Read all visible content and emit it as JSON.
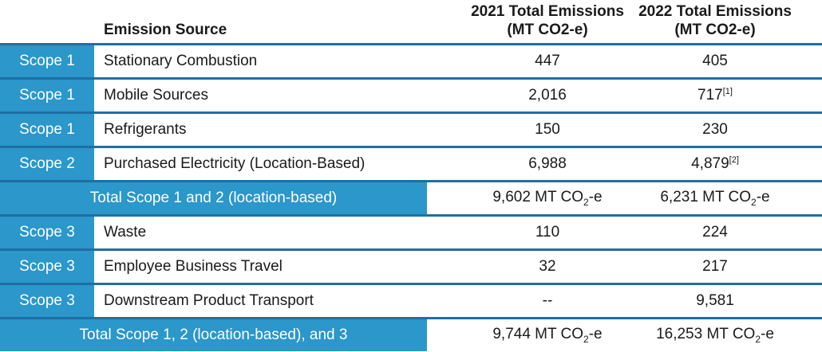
{
  "header": {
    "source": "Emission Source",
    "col2021": [
      "2021 Total Emissions",
      "(MT CO2-e)"
    ],
    "col2022": [
      "2022 Total Emissions",
      "(MT CO2-e)"
    ]
  },
  "rows": [
    {
      "scope": "Scope 1",
      "source": "Stationary Combustion",
      "v2021": "447",
      "v2022": "405"
    },
    {
      "scope": "Scope 1",
      "source": "Mobile Sources",
      "v2021": "2,016",
      "v2022": "717",
      "note2022": "[1]"
    },
    {
      "scope": "Scope 1",
      "source": "Refrigerants",
      "v2021": "150",
      "v2022": "230"
    },
    {
      "scope": "Scope 2",
      "source": "Purchased Electricity (Location-Based)",
      "v2021": "6,988",
      "v2022": "4,879",
      "note2022": "[2]"
    }
  ],
  "total12": {
    "label": "Total Scope 1 and 2 (location-based)",
    "v2021": "9,602 MT CO",
    "v2022": "6,231 MT CO",
    "sub": "2",
    "suffix": "-e"
  },
  "rows3": [
    {
      "scope": "Scope 3",
      "source": "Waste",
      "v2021": "110",
      "v2022": "224"
    },
    {
      "scope": "Scope 3",
      "source": "Employee Business Travel",
      "v2021": "32",
      "v2022": "217"
    },
    {
      "scope": "Scope 3",
      "source": "Downstream Product Transport",
      "v2021": "--",
      "v2022": "9,581"
    }
  ],
  "total123": {
    "label": "Total Scope 1, 2 (location-based), and 3",
    "v2021": "9,744 MT CO",
    "v2022": "16,253 MT CO",
    "sub": "2",
    "suffix": "-e"
  },
  "colors": {
    "accent": "#2b97ca",
    "rule": "#1f6ea3"
  }
}
